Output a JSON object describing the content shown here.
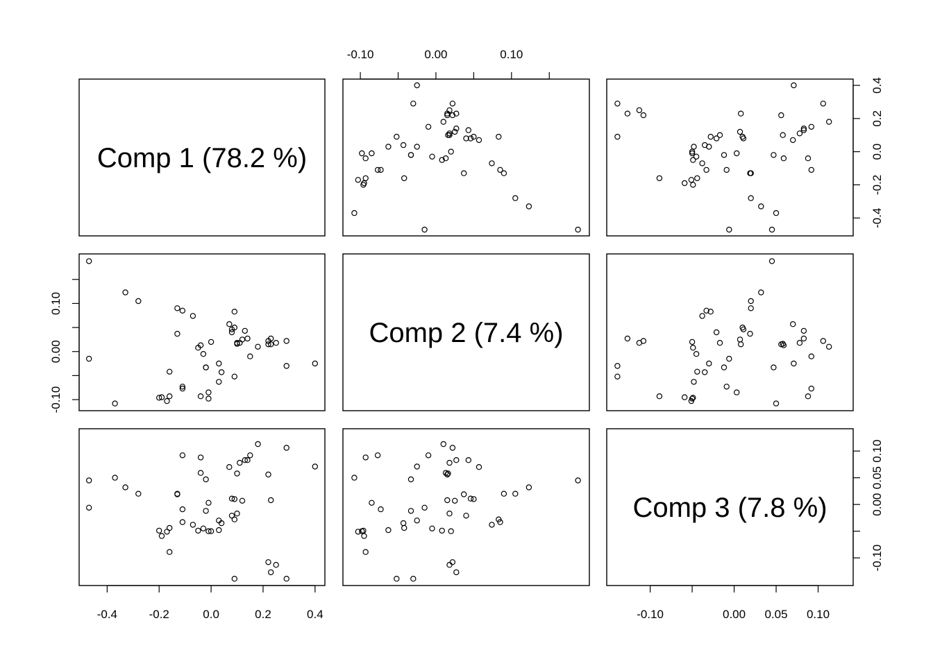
{
  "chart_data": {
    "type": "scatter",
    "variables": [
      {
        "name": "Comp 1",
        "label": "Comp 1 (78.2 %)",
        "lim": [
          -0.47,
          0.4
        ],
        "ticks": [
          -0.4,
          -0.2,
          0.0,
          0.2,
          0.4
        ],
        "tick_labels": [
          "-0.4",
          "-0.2",
          "0.0",
          "0.2",
          "0.4"
        ]
      },
      {
        "name": "Comp 2",
        "label": "Comp 2 (7.4 %)",
        "lim": [
          -0.11,
          0.19
        ],
        "ticks": [
          -0.1,
          -0.05,
          0.0,
          0.05,
          0.1,
          0.15
        ],
        "tick_labels": [
          "-0.10",
          "",
          "0.00",
          "",
          "0.10",
          ""
        ]
      },
      {
        "name": "Comp 3",
        "label": "Comp 3 (7.8 %)",
        "lim": [
          -0.14,
          0.13
        ],
        "ticks": [
          -0.1,
          -0.05,
          0.0,
          0.05,
          0.1
        ],
        "tick_labels": [
          "-0.10",
          "",
          "0.00",
          "0.05",
          "0.10"
        ]
      }
    ],
    "points": [
      [
        -0.47,
        0.188,
        0.045
      ],
      [
        -0.47,
        -0.015,
        -0.006
      ],
      [
        -0.37,
        -0.108,
        0.05
      ],
      [
        -0.33,
        0.123,
        0.032
      ],
      [
        -0.28,
        0.105,
        0.02
      ],
      [
        -0.2,
        -0.096,
        -0.049
      ],
      [
        -0.19,
        -0.095,
        -0.059
      ],
      [
        -0.17,
        -0.103,
        -0.051
      ],
      [
        -0.16,
        -0.042,
        -0.044
      ],
      [
        -0.16,
        -0.093,
        -0.089
      ],
      [
        -0.13,
        0.09,
        0.02
      ],
      [
        -0.13,
        0.037,
        0.019
      ],
      [
        -0.11,
        -0.073,
        -0.009
      ],
      [
        -0.11,
        -0.077,
        0.092
      ],
      [
        -0.11,
        0.085,
        -0.033
      ],
      [
        -0.07,
        0.074,
        -0.038
      ],
      [
        -0.05,
        0.008,
        -0.049
      ],
      [
        -0.04,
        -0.093,
        0.088
      ],
      [
        -0.04,
        0.013,
        0.059
      ],
      [
        -0.03,
        -0.005,
        -0.045
      ],
      [
        -0.02,
        -0.033,
        -0.012
      ],
      [
        -0.02,
        -0.033,
        0.047
      ],
      [
        -0.01,
        -0.085,
        0.003
      ],
      [
        -0.01,
        -0.098,
        -0.05
      ],
      [
        0.0,
        0.02,
        -0.05
      ],
      [
        0.03,
        -0.025,
        -0.03
      ],
      [
        0.03,
        -0.063,
        -0.048
      ],
      [
        0.04,
        -0.043,
        -0.035
      ],
      [
        0.07,
        0.057,
        0.07
      ],
      [
        0.08,
        0.046,
        0.011
      ],
      [
        0.08,
        0.04,
        -0.021
      ],
      [
        0.09,
        0.083,
        -0.028
      ],
      [
        0.09,
        0.05,
        0.01
      ],
      [
        0.09,
        -0.052,
        -0.139
      ],
      [
        0.1,
        0.018,
        -0.017
      ],
      [
        0.1,
        0.016,
        0.058
      ],
      [
        0.11,
        0.018,
        0.078
      ],
      [
        0.12,
        0.025,
        0.007
      ],
      [
        0.13,
        0.043,
        0.083
      ],
      [
        0.14,
        0.027,
        0.083
      ],
      [
        0.15,
        -0.01,
        0.092
      ],
      [
        0.18,
        0.01,
        0.113
      ],
      [
        0.22,
        0.022,
        -0.108
      ],
      [
        0.22,
        0.015,
        0.056
      ],
      [
        0.23,
        0.027,
        -0.127
      ],
      [
        0.23,
        0.015,
        0.008
      ],
      [
        0.25,
        0.018,
        -0.113
      ],
      [
        0.29,
        0.022,
        0.106
      ],
      [
        0.29,
        -0.03,
        -0.139
      ],
      [
        0.4,
        -0.025,
        0.071
      ]
    ]
  }
}
